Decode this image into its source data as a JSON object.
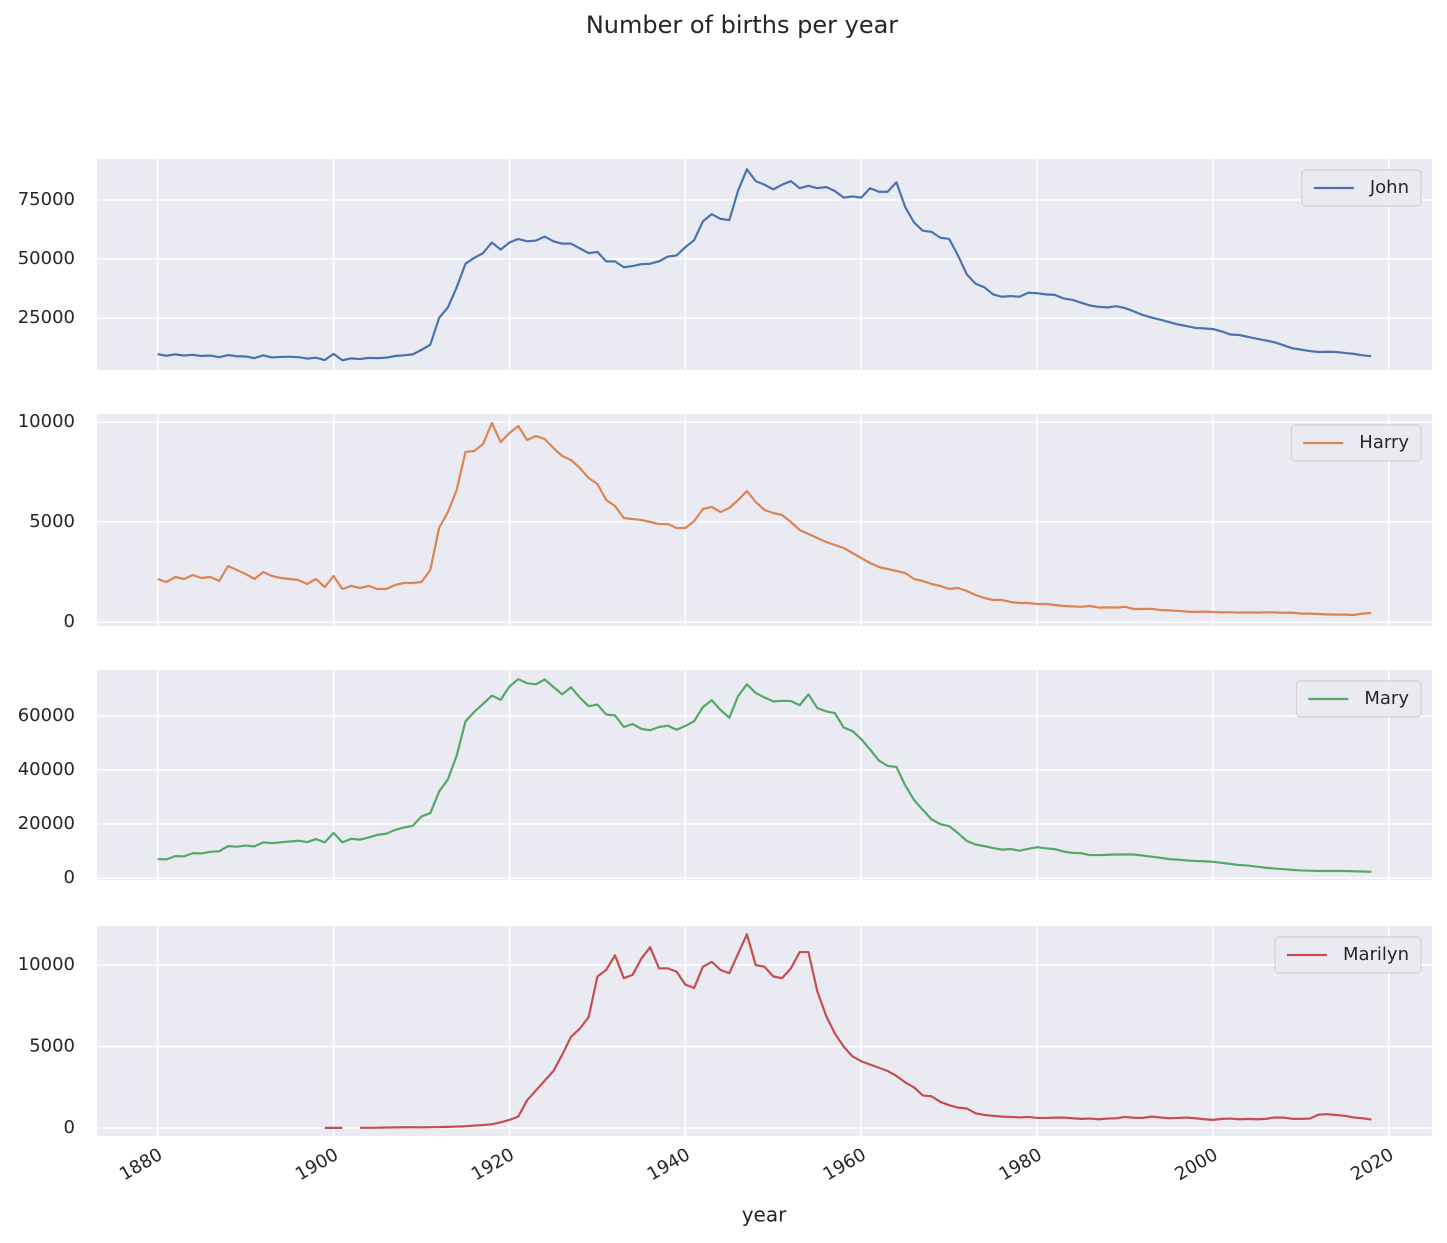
{
  "chart_data": {
    "type": "line",
    "title": "Number of births per year",
    "xlabel": "year",
    "x": [
      1880,
      1881,
      1882,
      1883,
      1884,
      1885,
      1886,
      1887,
      1888,
      1889,
      1890,
      1891,
      1892,
      1893,
      1894,
      1895,
      1896,
      1897,
      1898,
      1899,
      1900,
      1901,
      1902,
      1903,
      1904,
      1905,
      1906,
      1907,
      1908,
      1909,
      1910,
      1911,
      1912,
      1913,
      1914,
      1915,
      1916,
      1917,
      1918,
      1919,
      1920,
      1921,
      1922,
      1923,
      1924,
      1925,
      1926,
      1927,
      1928,
      1929,
      1930,
      1931,
      1932,
      1933,
      1934,
      1935,
      1936,
      1937,
      1938,
      1939,
      1940,
      1941,
      1942,
      1943,
      1944,
      1945,
      1946,
      1947,
      1948,
      1949,
      1950,
      1951,
      1952,
      1953,
      1954,
      1955,
      1956,
      1957,
      1958,
      1959,
      1960,
      1961,
      1962,
      1963,
      1964,
      1965,
      1966,
      1967,
      1968,
      1969,
      1970,
      1971,
      1972,
      1973,
      1974,
      1975,
      1976,
      1977,
      1978,
      1979,
      1980,
      1981,
      1982,
      1983,
      1984,
      1985,
      1986,
      1987,
      1988,
      1989,
      1990,
      1991,
      1992,
      1993,
      1994,
      1995,
      1996,
      1997,
      1998,
      1999,
      2000,
      2001,
      2002,
      2003,
      2004,
      2005,
      2006,
      2007,
      2008,
      2009,
      2010,
      2011,
      2012,
      2013,
      2014,
      2015,
      2016,
      2017,
      2018
    ],
    "xlim": [
      1873.1,
      2024.9
    ],
    "xticks": [
      1880,
      1900,
      1920,
      1940,
      1960,
      1980,
      2000,
      2020
    ],
    "grid": true,
    "legend": "upper right",
    "panels": [
      {
        "ylim": [
          2970,
          92370
        ],
        "yticks": [
          25000,
          50000,
          75000
        ],
        "series": [
          {
            "name": "John",
            "color": "#4c72b0",
            "values": [
              9700,
              9000,
              9600,
              9100,
              9400,
              8900,
              9100,
              8400,
              9300,
              8800,
              8700,
              8000,
              9200,
              8300,
              8500,
              8600,
              8400,
              7800,
              8200,
              7200,
              9800,
              7100,
              7900,
              7600,
              8100,
              8000,
              8200,
              8900,
              9200,
              9600,
              11500,
              13700,
              25000,
              29500,
              38000,
              48000,
              50500,
              52500,
              57000,
              54000,
              57000,
              58500,
              57500,
              57800,
              59500,
              57500,
              56500,
              56500,
              54500,
              52500,
              53000,
              49000,
              49000,
              46500,
              47000,
              47800,
              48000,
              49000,
              51000,
              51500,
              55000,
              58000,
              66000,
              69000,
              67000,
              66500,
              79000,
              88000,
              83000,
              81500,
              79500,
              81500,
              83000,
              80000,
              81000,
              80000,
              80500,
              78800,
              76000,
              76500,
              76000,
              80000,
              78500,
              78500,
              82500,
              72000,
              65500,
              62000,
              61500,
              59000,
              58500,
              51500,
              43500,
              39500,
              38000,
              35000,
              34000,
              34300,
              34000,
              35700,
              35500,
              35000,
              34800,
              33300,
              32700,
              31500,
              30300,
              29700,
              29500,
              30000,
              29200,
              27800,
              26300,
              25200,
              24300,
              23300,
              22300,
              21600,
              20800,
              20600,
              20300,
              19300,
              18000,
              17800,
              17000,
              16200,
              15500,
              14700,
              13500,
              12200,
              11600,
              11000,
              10600,
              10700,
              10600,
              10200,
              9800,
              9200,
              8800
            ]
          }
        ]
      },
      {
        "ylim": [
          -200,
          10400
        ],
        "yticks": [
          0,
          5000,
          10000
        ],
        "series": [
          {
            "name": "Harry",
            "color": "#dd8452",
            "values": [
              2150,
              2000,
              2250,
              2150,
              2350,
              2200,
              2250,
              2050,
              2800,
              2600,
              2400,
              2150,
              2500,
              2300,
              2200,
              2150,
              2100,
              1900,
              2150,
              1750,
              2300,
              1650,
              1800,
              1700,
              1800,
              1650,
              1650,
              1850,
              1950,
              1950,
              2000,
              2600,
              4700,
              5500,
              6600,
              8500,
              8550,
              8900,
              9950,
              9000,
              9450,
              9800,
              9100,
              9300,
              9150,
              8700,
              8300,
              8100,
              7700,
              7200,
              6900,
              6100,
              5800,
              5200,
              5150,
              5100,
              5000,
              4900,
              4900,
              4700,
              4700,
              5050,
              5650,
              5750,
              5500,
              5700,
              6100,
              6550,
              6000,
              5600,
              5450,
              5350,
              5000,
              4600,
              4400,
              4200,
              4000,
              3850,
              3700,
              3450,
              3200,
              2950,
              2750,
              2650,
              2550,
              2450,
              2150,
              2050,
              1900,
              1800,
              1650,
              1700,
              1550,
              1350,
              1200,
              1100,
              1100,
              1000,
              950,
              950,
              900,
              900,
              850,
              800,
              780,
              760,
              800,
              720,
              730,
              720,
              760,
              650,
              650,
              660,
              600,
              580,
              560,
              520,
              500,
              520,
              500,
              480,
              490,
              470,
              480,
              470,
              480,
              480,
              460,
              470,
              420,
              420,
              400,
              380,
              370,
              370,
              350,
              420,
              450
            ]
          }
        ]
      },
      {
        "ylim": [
          -740,
          77000
        ],
        "yticks": [
          0,
          20000,
          40000,
          60000
        ],
        "series": [
          {
            "name": "Mary",
            "color": "#55a868",
            "values": [
              7000,
              6900,
              8100,
              8000,
              9200,
              9100,
              9700,
              9900,
              11800,
              11600,
              12000,
              11700,
              13200,
              12900,
              13200,
              13500,
              13800,
              13300,
              14400,
              13200,
              16700,
              13200,
              14500,
              14200,
              15000,
              16000,
              16400,
              17800,
              18700,
              19300,
              22800,
              24000,
              32000,
              36500,
              45300,
              58000,
              61500,
              64500,
              67500,
              66000,
              70900,
              73600,
              72100,
              71700,
              73500,
              70700,
              68000,
              70600,
              66800,
              63600,
              64200,
              60500,
              60200,
              55900,
              57000,
              55200,
              54700,
              55900,
              56400,
              54900,
              56300,
              58000,
              63300,
              65800,
              62200,
              59300,
              67400,
              71700,
              68500,
              66800,
              65400,
              65600,
              65500,
              64000,
              68000,
              62900,
              61700,
              61000,
              55700,
              54400,
              51400,
              47600,
              43500,
              41500,
              41100,
              34300,
              28900,
              25200,
              21700,
              19900,
              19200,
              16600,
              13700,
              12400,
              11800,
              11100,
              10500,
              10700,
              10100,
              10800,
              11400,
              11000,
              10700,
              9800,
              9300,
              9200,
              8500,
              8500,
              8600,
              8700,
              8700,
              8700,
              8300,
              7900,
              7500,
              7000,
              6800,
              6500,
              6300,
              6200,
              6000,
              5600,
              5200,
              4800,
              4600,
              4200,
              3800,
              3500,
              3300,
              3000,
              2800,
              2700,
              2600,
              2600,
              2600,
              2600,
              2500,
              2400,
              2300
            ]
          }
        ]
      },
      {
        "ylim": [
          -490,
          12400
        ],
        "yticks": [
          0,
          5000,
          10000
        ],
        "series": [
          {
            "name": "Marilyn",
            "color": "#c44e52",
            "values": [
              null,
              null,
              null,
              null,
              null,
              null,
              null,
              null,
              null,
              null,
              null,
              null,
              null,
              null,
              null,
              null,
              null,
              null,
              null,
              8,
              10,
              8,
              null,
              12,
              14,
              20,
              30,
              40,
              45,
              50,
              40,
              50,
              60,
              70,
              90,
              110,
              150,
              180,
              230,
              350,
              500,
              700,
              1700,
              2300,
              2900,
              3500,
              4500,
              5600,
              6100,
              6800,
              9300,
              9700,
              10600,
              9200,
              9400,
              10400,
              11100,
              9800,
              9800,
              9600,
              8800,
              8600,
              9900,
              10200,
              9700,
              9500,
              10700,
              11900,
              10000,
              9900,
              9300,
              9200,
              9800,
              10800,
              10800,
              8400,
              6900,
              5800,
              5000,
              4400,
              4100,
              3900,
              3700,
              3500,
              3200,
              2800,
              2500,
              2000,
              1950,
              1600,
              1400,
              1250,
              1200,
              900,
              800,
              750,
              700,
              680,
              650,
              680,
              620,
              620,
              640,
              640,
              600,
              560,
              580,
              540,
              580,
              600,
              680,
              630,
              620,
              700,
              650,
              600,
              620,
              640,
              600,
              540,
              500,
              560,
              580,
              540,
              560,
              540,
              560,
              650,
              640,
              570,
              560,
              580,
              820,
              850,
              800,
              750,
              650,
              600,
              520
            ]
          }
        ]
      }
    ]
  }
}
